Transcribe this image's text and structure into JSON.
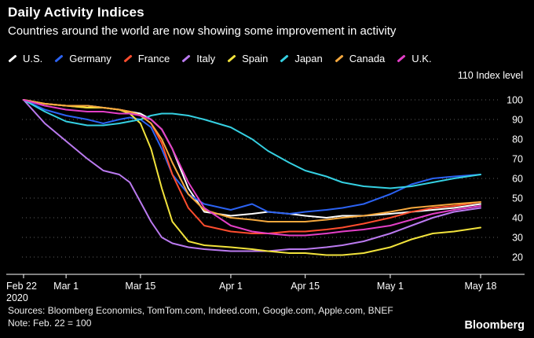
{
  "header": {
    "title": "Daily Activity Indices",
    "subtitle": "Countries around the world are now showing some improvement in activity"
  },
  "chart_data": {
    "type": "line",
    "title": "Daily Activity Indices",
    "axis_title": "110 Index level",
    "x_unit": "days since Feb 22, 2020",
    "grid": "dotted-horizontal",
    "legend_position": "top",
    "ylim": [
      15,
      112
    ],
    "y_ticks": [
      100,
      90,
      80,
      70,
      60,
      50,
      40,
      30,
      20
    ],
    "x_ticks": [
      {
        "day": 0,
        "label": "Feb 22",
        "sublabel": "2020"
      },
      {
        "day": 8,
        "label": "Mar 1"
      },
      {
        "day": 22,
        "label": "Mar 15"
      },
      {
        "day": 39,
        "label": "Apr 1"
      },
      {
        "day": 53,
        "label": "Apr 15"
      },
      {
        "day": 69,
        "label": "May 1"
      },
      {
        "day": 86,
        "label": "May 18"
      }
    ],
    "x": [
      0,
      4,
      8,
      12,
      15,
      18,
      20,
      22,
      24,
      26,
      28,
      31,
      34,
      39,
      43,
      46,
      50,
      53,
      57,
      60,
      64,
      69,
      73,
      77,
      81,
      86
    ],
    "series": [
      {
        "name": "U.S.",
        "color": "#ffffff",
        "values": [
          100,
          98,
          97,
          97,
          96,
          95,
          94,
          93,
          90,
          85,
          75,
          55,
          43,
          41,
          42,
          43,
          42,
          41,
          40,
          41,
          41,
          42,
          43,
          44,
          45,
          47
        ]
      },
      {
        "name": "Germany",
        "color": "#2b62f2",
        "values": [
          100,
          95,
          92,
          90,
          88,
          90,
          91,
          90,
          86,
          75,
          62,
          52,
          47,
          44,
          47,
          43,
          42,
          43,
          44,
          45,
          47,
          52,
          57,
          60,
          61,
          62
        ]
      },
      {
        "name": "France",
        "color": "#ff4d2e",
        "values": [
          100,
          98,
          97,
          96,
          96,
          95,
          94,
          92,
          88,
          78,
          62,
          45,
          36,
          33,
          32,
          32,
          33,
          33,
          34,
          35,
          37,
          40,
          43,
          45,
          46,
          48
        ]
      },
      {
        "name": "Italy",
        "color": "#bb7af0",
        "values": [
          100,
          88,
          79,
          70,
          64,
          62,
          58,
          48,
          38,
          30,
          27,
          25,
          24,
          23,
          23,
          23,
          24,
          24,
          25,
          26,
          28,
          32,
          36,
          40,
          43,
          45
        ]
      },
      {
        "name": "Spain",
        "color": "#f2e33c",
        "values": [
          100,
          98,
          97,
          96,
          96,
          95,
          93,
          88,
          75,
          55,
          38,
          28,
          26,
          25,
          24,
          23,
          22,
          22,
          21,
          21,
          22,
          25,
          29,
          32,
          33,
          35
        ]
      },
      {
        "name": "Japan",
        "color": "#35d0e2",
        "values": [
          100,
          94,
          89,
          87,
          87,
          88,
          89,
          90,
          92,
          93,
          93,
          92,
          90,
          86,
          80,
          74,
          68,
          64,
          61,
          58,
          56,
          55,
          56,
          58,
          60,
          62
        ]
      },
      {
        "name": "Canada",
        "color": "#f5a83e",
        "values": [
          100,
          98,
          97,
          97,
          96,
          95,
          94,
          92,
          88,
          80,
          68,
          52,
          44,
          40,
          39,
          38,
          38,
          38,
          39,
          40,
          41,
          43,
          45,
          46,
          47,
          48
        ]
      },
      {
        "name": "U.K.",
        "color": "#e33fc7",
        "values": [
          100,
          97,
          95,
          94,
          94,
          93,
          93,
          92,
          90,
          85,
          75,
          58,
          45,
          36,
          33,
          32,
          31,
          31,
          32,
          33,
          34,
          36,
          39,
          42,
          44,
          46
        ]
      }
    ],
    "colors": {
      "background": "#000000",
      "gridline": "#606060",
      "axis": "#ffffff",
      "text": "#ffffff"
    }
  },
  "footer": {
    "sources": "Sources: Bloomberg Economics, TomTom.com, Indeed.com, Google.com, Apple.com, BNEF",
    "note": "Note: Feb. 22 = 100",
    "brand": "Bloomberg"
  }
}
